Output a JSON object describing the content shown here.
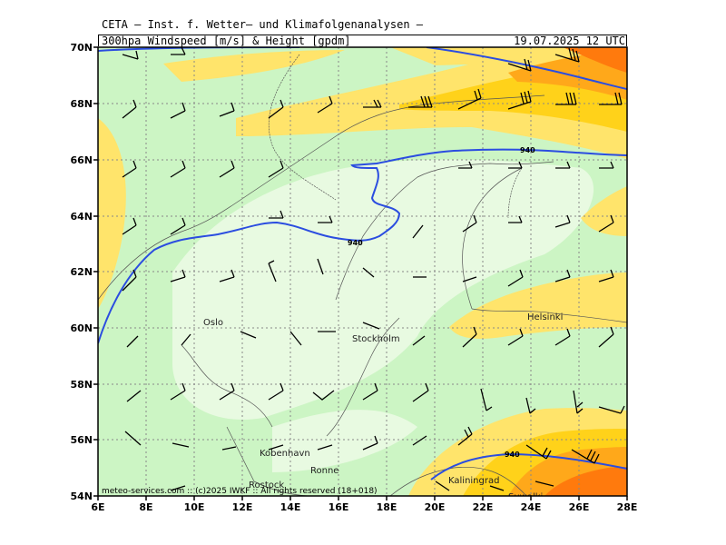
{
  "header": {
    "title": "CETA – Inst. f. Wetter– und Klimafolgenanalysen –",
    "subtitle": "300hpa Windspeed [m/s] & Height [gpdm]",
    "datetime": "19.07.2025 12 UTC"
  },
  "axes": {
    "lat_labels": [
      "70N",
      "68N",
      "66N",
      "64N",
      "62N",
      "60N",
      "58N",
      "56N",
      "54N"
    ],
    "lon_labels": [
      "6E",
      "8E",
      "10E",
      "12E",
      "14E",
      "16E",
      "18E",
      "20E",
      "22E",
      "24E",
      "26E",
      "28E"
    ]
  },
  "cities": [
    {
      "name": "Oslo"
    },
    {
      "name": "Stockholm"
    },
    {
      "name": "Helsinki"
    },
    {
      "name": "Kobenhavn"
    },
    {
      "name": "Ronne"
    },
    {
      "name": "Rostock"
    },
    {
      "name": "Kaliningrad"
    },
    {
      "name": "Suwalki"
    }
  ],
  "contour_labels": [
    "940",
    "940",
    "940"
  ],
  "credit": "meteo-services.com :: (c)2025 IWKF :: All rights reserved (18+018)",
  "colors": {
    "light_green": "#ccf5c4",
    "pale_green": "#e8fae1",
    "yellow": "#ffe46b",
    "gold": "#ffd21a",
    "orange": "#ffa81a",
    "dark_orange": "#ff7a0d",
    "contour": "#2b4de0"
  }
}
